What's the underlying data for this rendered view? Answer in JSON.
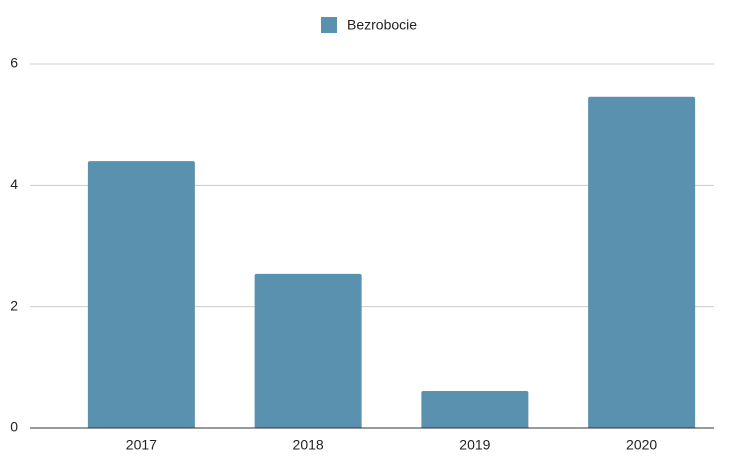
{
  "chart_data": {
    "type": "bar",
    "categories": [
      "2017",
      "2018",
      "2019",
      "2020"
    ],
    "series": [
      {
        "name": "Bezrobocie",
        "color": "#5a91af",
        "values": [
          4.4,
          2.54,
          0.61,
          5.46
        ]
      }
    ],
    "ylim": [
      0,
      6
    ],
    "yticks": [
      0,
      2,
      4,
      6
    ],
    "grid": true,
    "legend": "top"
  }
}
